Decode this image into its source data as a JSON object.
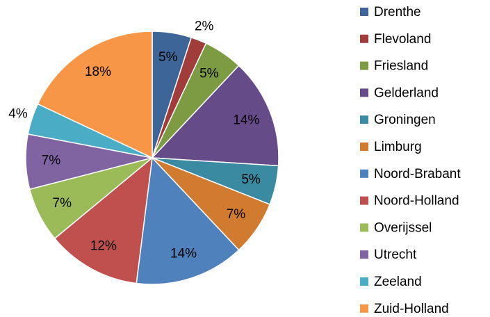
{
  "chart_data": {
    "type": "pie",
    "categories": [
      "Drenthe",
      "Flevoland",
      "Friesland",
      "Gelderland",
      "Groningen",
      "Limburg",
      "Noord-Brabant",
      "Noord-Holland",
      "Overijssel",
      "Utrecht",
      "Zeeland",
      "Zuid-Holland"
    ],
    "values": [
      5,
      2,
      5,
      14,
      5,
      7,
      14,
      12,
      7,
      7,
      4,
      18
    ],
    "value_labels": [
      "5%",
      "2%",
      "5%",
      "14%",
      "5%",
      "7%",
      "14%",
      "12%",
      "7%",
      "7%",
      "4%",
      "18%"
    ],
    "colors": [
      "#3d6598",
      "#a03c3a",
      "#7c9b42",
      "#654b88",
      "#3a8aa1",
      "#d07b30",
      "#4f81bd",
      "#c0504d",
      "#9bbb59",
      "#8064a2",
      "#4bacc6",
      "#f79646"
    ],
    "legend": "right"
  }
}
